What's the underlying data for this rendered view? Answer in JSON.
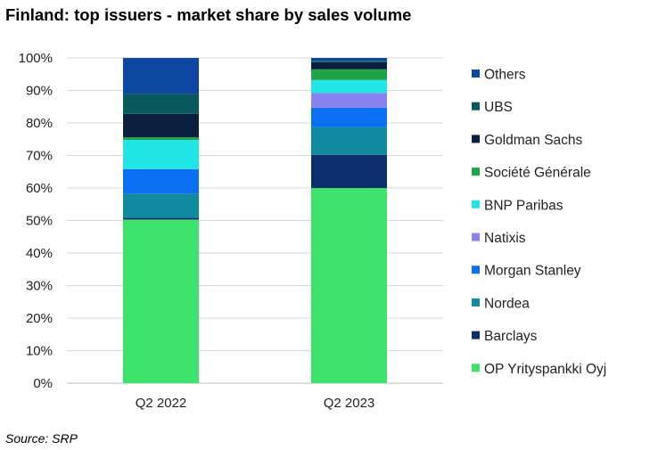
{
  "chart_data": {
    "type": "bar",
    "stacked": true,
    "title": "Finland: top issuers - market share by sales volume",
    "xlabel": "",
    "ylabel": "",
    "categories": [
      "Q2 2022",
      "Q2 2023"
    ],
    "ylim": [
      0,
      1
    ],
    "yticks": [
      "0%",
      "10%",
      "20%",
      "30%",
      "40%",
      "50%",
      "60%",
      "70%",
      "80%",
      "90%",
      "100%"
    ],
    "grid": true,
    "legend_position": "right",
    "series": [
      {
        "name": "OP Yrityspankki Oyj",
        "color": "#3de36a",
        "values": [
          0.503,
          0.6
        ]
      },
      {
        "name": "Barclays",
        "color": "#0a2f6b",
        "values": [
          0.005,
          0.102
        ]
      },
      {
        "name": "Nordea",
        "color": "#0f8a9e",
        "values": [
          0.075,
          0.085
        ]
      },
      {
        "name": "Morgan Stanley",
        "color": "#0a6ff0",
        "values": [
          0.075,
          0.06
        ]
      },
      {
        "name": "Natixis",
        "color": "#8b82f2",
        "values": [
          0.0,
          0.045
        ]
      },
      {
        "name": "BNP Paribas",
        "color": "#22e5e5",
        "values": [
          0.09,
          0.04
        ]
      },
      {
        "name": "Société Générale",
        "color": "#22a348",
        "values": [
          0.008,
          0.033
        ]
      },
      {
        "name": "Goldman Sachs",
        "color": "#0b1f3f",
        "values": [
          0.072,
          0.022
        ]
      },
      {
        "name": "UBS",
        "color": "#08595e",
        "values": [
          0.062,
          0.004
        ]
      },
      {
        "name": "Others",
        "color": "#0d47a1",
        "values": [
          0.11,
          0.009
        ]
      }
    ]
  },
  "footer": {
    "source": "Source: SRP"
  }
}
